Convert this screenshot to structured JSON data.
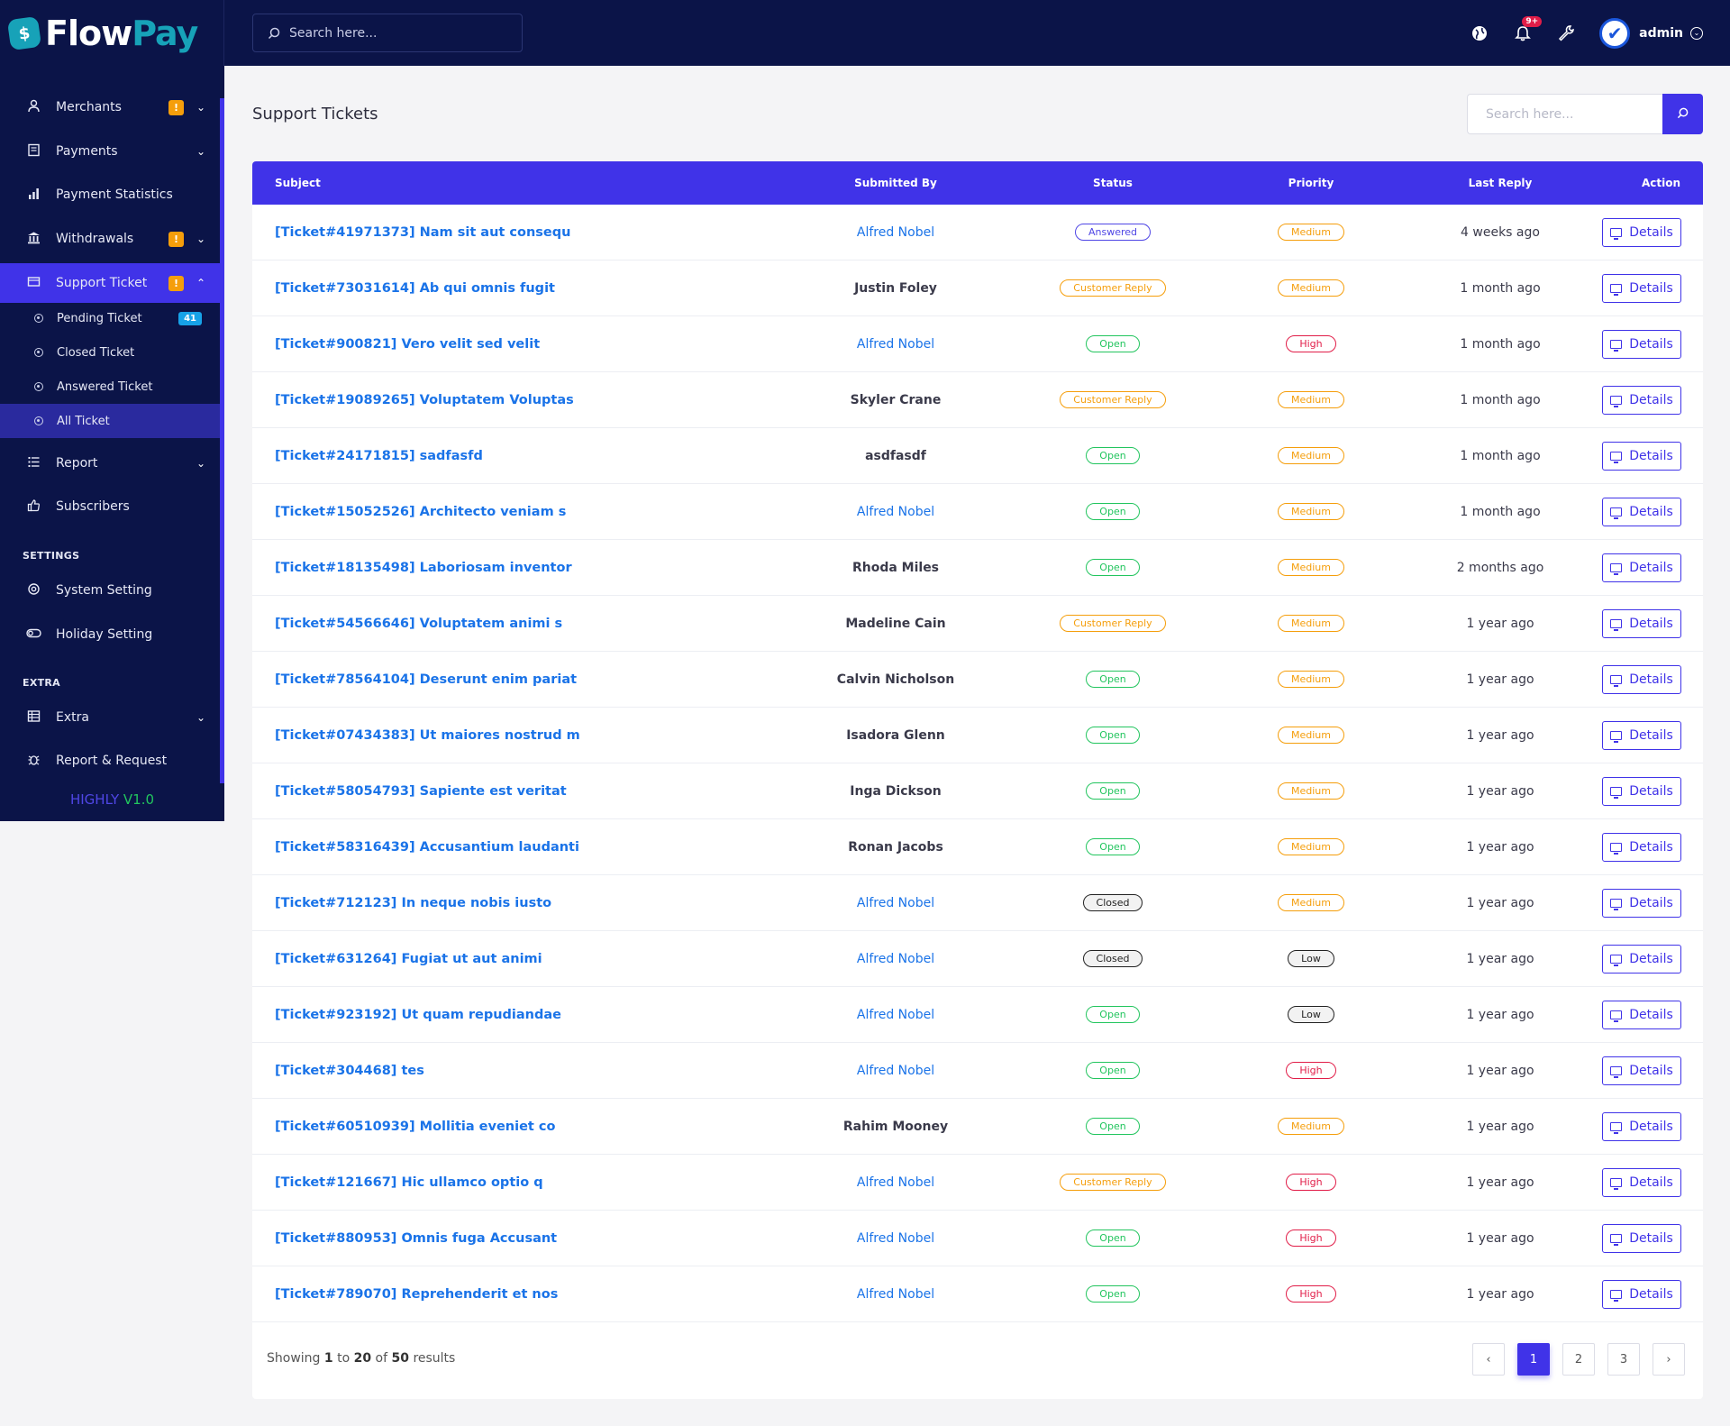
{
  "brand": {
    "logo_a": "Flow",
    "logo_b": "Pay",
    "logo_glyph": "$"
  },
  "topbar": {
    "search_placeholder": "Search here...",
    "notification_count": "9+",
    "user_name": "admin"
  },
  "sidebar": {
    "items": [
      {
        "key": "merchants",
        "label": "Merchants",
        "icon": "user-icon",
        "warn": "!",
        "caret": "⌄"
      },
      {
        "key": "payments",
        "label": "Payments",
        "icon": "receipt-icon",
        "caret": "⌄"
      },
      {
        "key": "payment-statistics",
        "label": "Payment Statistics",
        "icon": "bar-chart-icon"
      },
      {
        "key": "withdrawals",
        "label": "Withdrawals",
        "icon": "bank-icon",
        "warn": "!",
        "caret": "⌄"
      },
      {
        "key": "support-ticket",
        "label": "Support Ticket",
        "icon": "ticket-icon",
        "warn": "!",
        "caret": "⌃"
      }
    ],
    "sub_items": [
      {
        "key": "pending",
        "label": "Pending Ticket",
        "count": "41"
      },
      {
        "key": "closed",
        "label": "Closed Ticket"
      },
      {
        "key": "answered",
        "label": "Answered Ticket"
      },
      {
        "key": "all",
        "label": "All Ticket"
      }
    ],
    "items2": [
      {
        "key": "report",
        "label": "Report",
        "icon": "list-icon",
        "caret": "⌄"
      },
      {
        "key": "subscribers",
        "label": "Subscribers",
        "icon": "thumbs-up-icon"
      }
    ],
    "settings_heading": "SETTINGS",
    "settings_items": [
      {
        "key": "system-setting",
        "label": "System Setting",
        "icon": "gear-icon"
      },
      {
        "key": "holiday-setting",
        "label": "Holiday Setting",
        "icon": "toggle-icon"
      }
    ],
    "extra_heading": "EXTRA",
    "extra_items": [
      {
        "key": "extra",
        "label": "Extra",
        "icon": "table-icon",
        "caret": "⌄"
      },
      {
        "key": "report-request",
        "label": "Report & Request",
        "icon": "bug-icon"
      }
    ],
    "version_a": "HIGHLY",
    "version_b": "V1.0"
  },
  "page": {
    "title": "Support Tickets",
    "search_placeholder": "Search here..."
  },
  "table": {
    "headers": {
      "subject": "Subject",
      "submitted_by": "Submitted By",
      "status": "Status",
      "priority": "Priority",
      "last_reply": "Last Reply",
      "action": "Action"
    },
    "action_label": "Details",
    "rows": [
      {
        "subject": "[Ticket#41971373] Nam sit aut consequ",
        "by": "Alfred Nobel",
        "by_link": true,
        "status": "Answered",
        "priority": "Medium",
        "reply": "4 weeks ago"
      },
      {
        "subject": "[Ticket#73031614] Ab qui omnis fugit",
        "by": "Justin Foley",
        "by_link": false,
        "status": "Customer Reply",
        "priority": "Medium",
        "reply": "1 month ago"
      },
      {
        "subject": "[Ticket#900821] Vero velit sed velit",
        "by": "Alfred Nobel",
        "by_link": true,
        "status": "Open",
        "priority": "High",
        "reply": "1 month ago"
      },
      {
        "subject": "[Ticket#19089265] Voluptatem Voluptas",
        "by": "Skyler Crane",
        "by_link": false,
        "status": "Customer Reply",
        "priority": "Medium",
        "reply": "1 month ago"
      },
      {
        "subject": "[Ticket#24171815] sadfasfd",
        "by": "asdfasdf",
        "by_link": false,
        "status": "Open",
        "priority": "Medium",
        "reply": "1 month ago"
      },
      {
        "subject": "[Ticket#15052526] Architecto veniam s",
        "by": "Alfred Nobel",
        "by_link": true,
        "status": "Open",
        "priority": "Medium",
        "reply": "1 month ago"
      },
      {
        "subject": "[Ticket#18135498] Laboriosam inventor",
        "by": "Rhoda Miles",
        "by_link": false,
        "status": "Open",
        "priority": "Medium",
        "reply": "2 months ago"
      },
      {
        "subject": "[Ticket#54566646] Voluptatem animi s",
        "by": "Madeline Cain",
        "by_link": false,
        "status": "Customer Reply",
        "priority": "Medium",
        "reply": "1 year ago"
      },
      {
        "subject": "[Ticket#78564104] Deserunt enim pariat",
        "by": "Calvin Nicholson",
        "by_link": false,
        "status": "Open",
        "priority": "Medium",
        "reply": "1 year ago"
      },
      {
        "subject": "[Ticket#07434383] Ut maiores nostrud m",
        "by": "Isadora Glenn",
        "by_link": false,
        "status": "Open",
        "priority": "Medium",
        "reply": "1 year ago"
      },
      {
        "subject": "[Ticket#58054793] Sapiente est veritat",
        "by": "Inga Dickson",
        "by_link": false,
        "status": "Open",
        "priority": "Medium",
        "reply": "1 year ago"
      },
      {
        "subject": "[Ticket#58316439] Accusantium laudanti",
        "by": "Ronan Jacobs",
        "by_link": false,
        "status": "Open",
        "priority": "Medium",
        "reply": "1 year ago"
      },
      {
        "subject": "[Ticket#712123] In neque nobis iusto",
        "by": "Alfred Nobel",
        "by_link": true,
        "status": "Closed",
        "priority": "Medium",
        "reply": "1 year ago"
      },
      {
        "subject": "[Ticket#631264] Fugiat ut aut animi",
        "by": "Alfred Nobel",
        "by_link": true,
        "status": "Closed",
        "priority": "Low",
        "reply": "1 year ago"
      },
      {
        "subject": "[Ticket#923192] Ut quam repudiandae",
        "by": "Alfred Nobel",
        "by_link": true,
        "status": "Open",
        "priority": "Low",
        "reply": "1 year ago"
      },
      {
        "subject": "[Ticket#304468] tes",
        "by": "Alfred Nobel",
        "by_link": true,
        "status": "Open",
        "priority": "High",
        "reply": "1 year ago"
      },
      {
        "subject": "[Ticket#60510939] Mollitia eveniet co",
        "by": "Rahim Mooney",
        "by_link": false,
        "status": "Open",
        "priority": "Medium",
        "reply": "1 year ago"
      },
      {
        "subject": "[Ticket#121667] Hic ullamco optio q",
        "by": "Alfred Nobel",
        "by_link": true,
        "status": "Customer Reply",
        "priority": "High",
        "reply": "1 year ago"
      },
      {
        "subject": "[Ticket#880953] Omnis fuga Accusant",
        "by": "Alfred Nobel",
        "by_link": true,
        "status": "Open",
        "priority": "High",
        "reply": "1 year ago"
      },
      {
        "subject": "[Ticket#789070] Reprehenderit et nos",
        "by": "Alfred Nobel",
        "by_link": true,
        "status": "Open",
        "priority": "High",
        "reply": "1 year ago"
      }
    ]
  },
  "footer": {
    "showing": "Showing",
    "from": "1",
    "to_word": "to",
    "to": "20",
    "of_word": "of",
    "total": "50",
    "results": "results"
  },
  "pagination": {
    "prev": "‹",
    "pages": [
      "1",
      "2",
      "3"
    ],
    "active": "1",
    "next": "›"
  },
  "colors": {
    "navy": "#0b1448",
    "accent": "#4033e8",
    "link": "#1a73e8",
    "open": "#22c55e",
    "warn": "#f59e0b",
    "high": "#e11d48"
  }
}
